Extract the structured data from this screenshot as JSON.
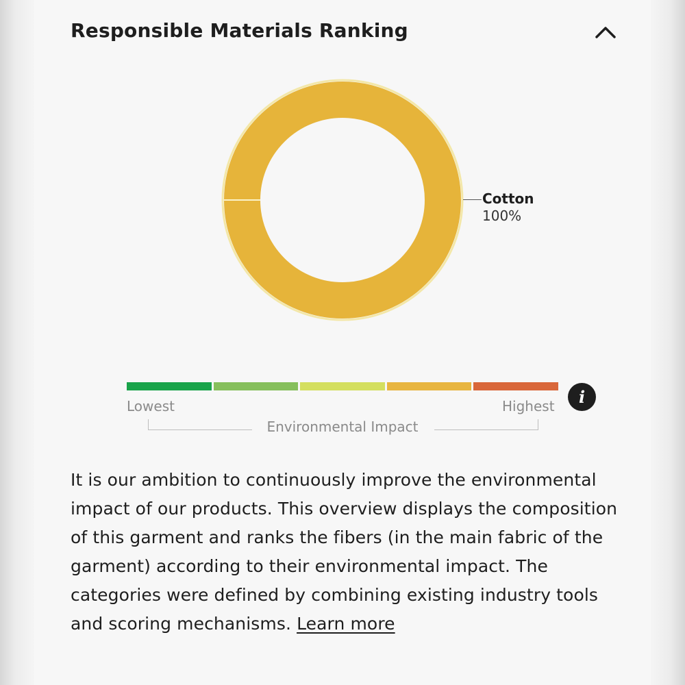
{
  "section": {
    "title": "Responsible Materials Ranking",
    "collapse_icon": "chevron-up-icon"
  },
  "chart_data": {
    "type": "pie",
    "style": "donut",
    "categories": [
      "Cotton"
    ],
    "values": [
      100
    ],
    "labels": [
      {
        "name": "Cotton",
        "value_text": "100%"
      }
    ],
    "colors": [
      "#e6b43a"
    ]
  },
  "impact_scale": {
    "low_label": "Lowest",
    "high_label": "Highest",
    "caption": "Environmental Impact",
    "info_icon": "info-icon",
    "segment_colors": [
      "#19a34a",
      "#86bf5c",
      "#d4df5f",
      "#e8b540",
      "#d9673a"
    ]
  },
  "description": {
    "text": "It is our ambition to continuously improve the environmental impact of our products. This overview displays the composition of this garment and ranks the fibers (in the main fabric of the garment) according to their environmental impact. The categories were defined by combining existing industry tools and scoring mechanisms. ",
    "link_label": "Learn more"
  }
}
